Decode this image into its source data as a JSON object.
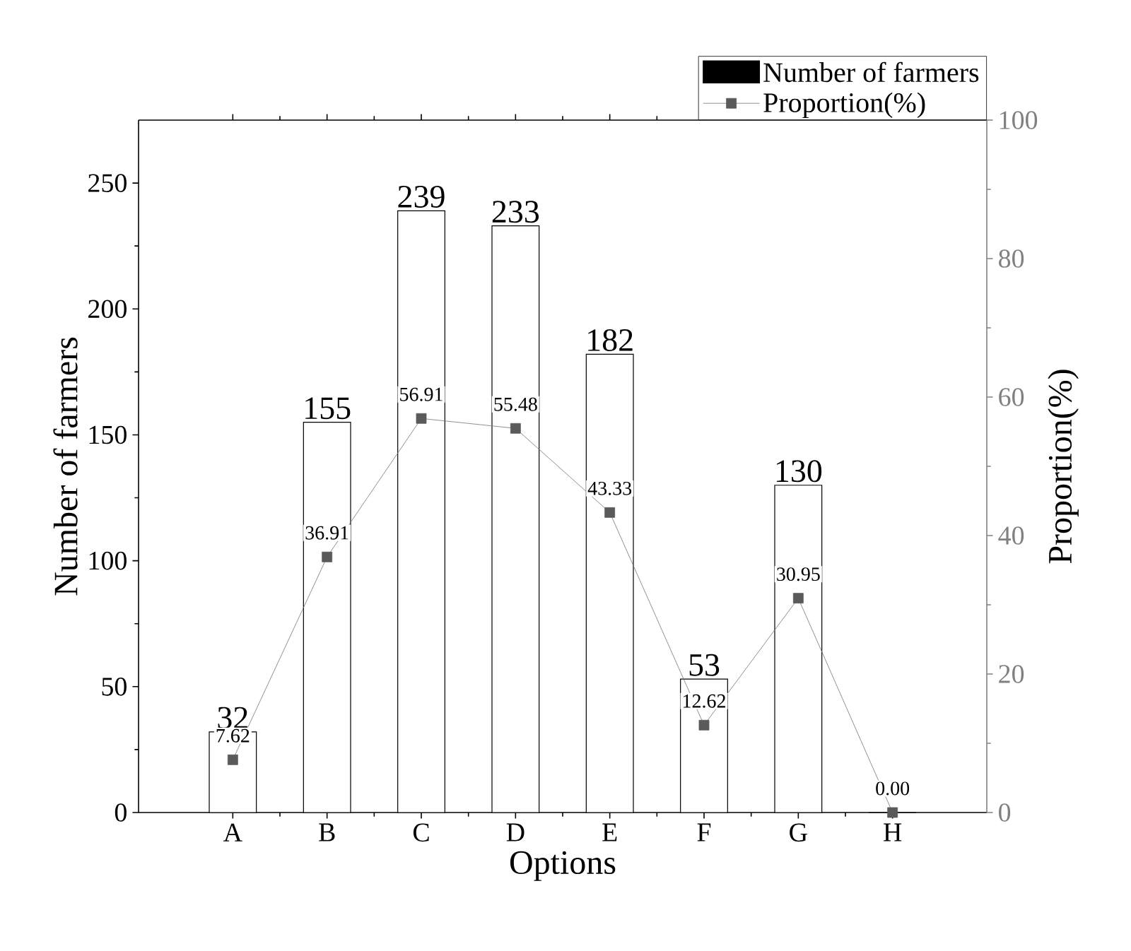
{
  "chart_data": {
    "type": "bar",
    "xlabel": "Options",
    "ylabel": "Number of farmers",
    "y2label": "Proportion(%)",
    "categories": [
      "A",
      "B",
      "C",
      "D",
      "E",
      "F",
      "G",
      "H"
    ],
    "series": [
      {
        "name": "Number of farmers",
        "color": "#000000",
        "values": [
          32,
          155,
          239,
          233,
          182,
          53,
          130,
          0
        ],
        "value_labels": [
          "32",
          "155",
          "239",
          "233",
          "182",
          "53",
          "130",
          null
        ]
      },
      {
        "name": "Proportion(%)",
        "type": "line",
        "axis": "y2",
        "color": "#5a5a5a",
        "marker": "square",
        "values": [
          7.62,
          36.91,
          56.91,
          55.48,
          43.33,
          12.62,
          30.95,
          0.0
        ],
        "value_labels": [
          "7.62",
          "36.91",
          "56.91",
          "55.48",
          "43.33",
          "12.62",
          "30.95",
          "0.00"
        ]
      }
    ],
    "ylim": [
      0,
      275
    ],
    "yticks": [
      0,
      50,
      100,
      150,
      200,
      250
    ],
    "y2lim": [
      0,
      100
    ],
    "y2ticks": [
      0,
      20,
      40,
      60,
      80,
      100
    ],
    "legend": "top right"
  }
}
